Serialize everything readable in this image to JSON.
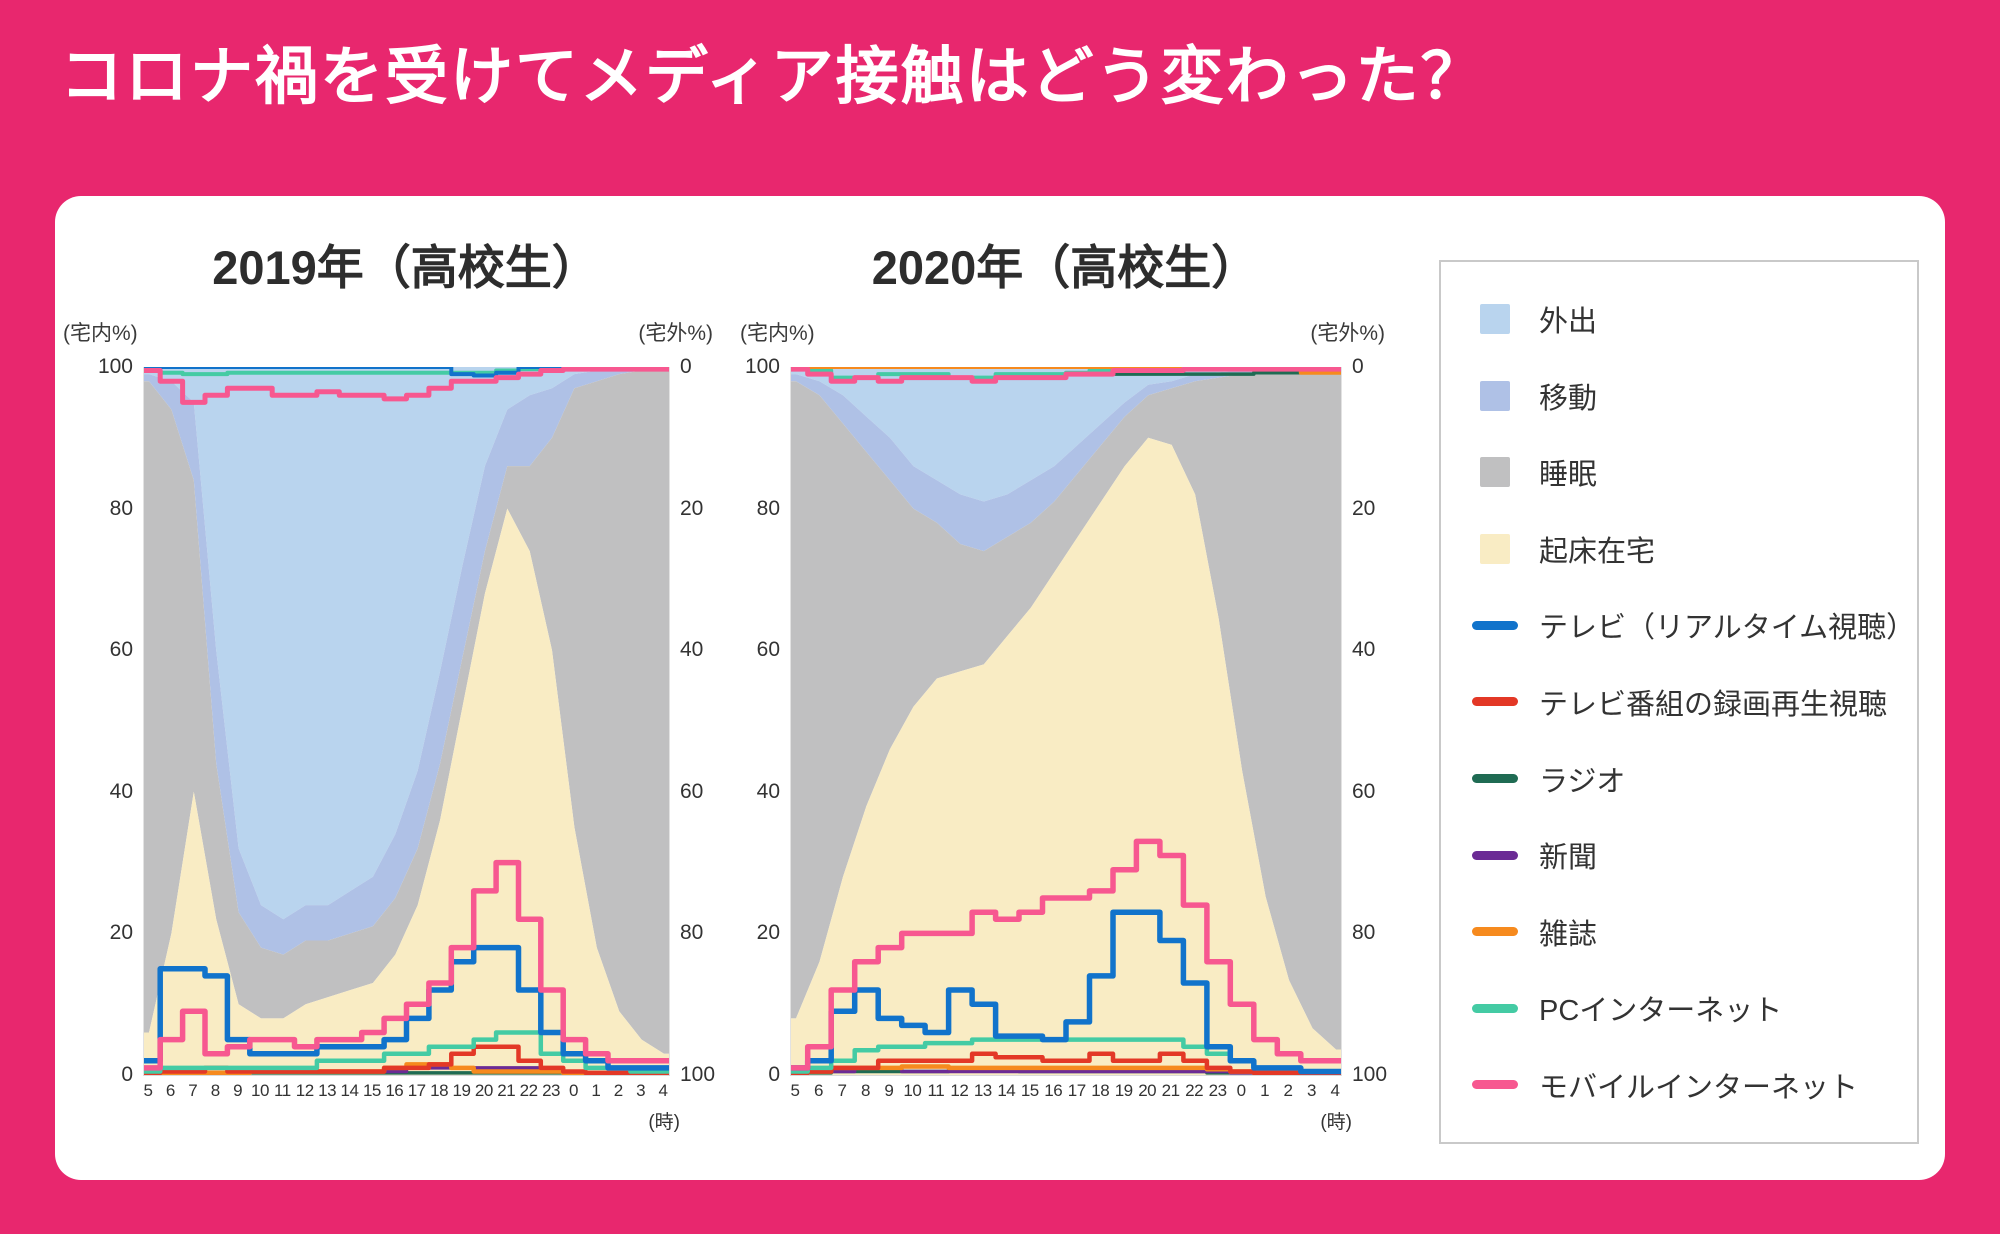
{
  "title": "コロナ禍を受けてメディア接触はどう変わった？",
  "colors": {
    "background": "#E8276E",
    "out": "#B9D4EE",
    "transit": "#AFC1E6",
    "sleep": "#C0C0C1",
    "awake": "#F9ECC4",
    "tv": "#1173CB",
    "tv_rec": "#E33826",
    "radio": "#1F6B53",
    "newspaper": "#6B2B95",
    "magazine": "#F68A1E",
    "pc": "#44CBA4",
    "mobile": "#F75890"
  },
  "legend": {
    "items": [
      {
        "label": "外出",
        "color_key": "out",
        "swatch": "area"
      },
      {
        "label": "移動",
        "color_key": "transit",
        "swatch": "area"
      },
      {
        "label": "睡眠",
        "color_key": "sleep",
        "swatch": "area"
      },
      {
        "label": "起床在宅",
        "color_key": "awake",
        "swatch": "area"
      },
      {
        "label": "テレビ（リアルタイム視聴）",
        "color_key": "tv",
        "swatch": "line"
      },
      {
        "label": "テレビ番組の録画再生視聴",
        "color_key": "tv_rec",
        "swatch": "line"
      },
      {
        "label": "ラジオ",
        "color_key": "radio",
        "swatch": "line"
      },
      {
        "label": "新聞",
        "color_key": "newspaper",
        "swatch": "line"
      },
      {
        "label": "雑誌",
        "color_key": "magazine",
        "swatch": "line"
      },
      {
        "label": "PCインターネット",
        "color_key": "pc",
        "swatch": "line"
      },
      {
        "label": "モバイルインターネット",
        "color_key": "mobile",
        "swatch": "line"
      }
    ]
  },
  "chart_data": [
    {
      "type": "area",
      "title": "2019年（高校生）",
      "left_axis_label": "(宅内%)",
      "right_axis_label": "(宅外%)",
      "x_unit": "(時)",
      "hours": [
        "5",
        "6",
        "7",
        "8",
        "9",
        "10",
        "11",
        "12",
        "13",
        "14",
        "15",
        "16",
        "17",
        "18",
        "19",
        "20",
        "21",
        "22",
        "23",
        "0",
        "1",
        "2",
        "3",
        "4"
      ],
      "left_ticks": [
        "100",
        "80",
        "60",
        "40",
        "20",
        "0"
      ],
      "right_ticks": [
        "0",
        "20",
        "40",
        "60",
        "80",
        "100"
      ],
      "ylim_left": [
        0,
        100
      ],
      "ylim_right_inverted": [
        0,
        100
      ],
      "areas": {
        "awake": [
          6,
          20,
          40,
          22,
          10,
          8,
          8,
          10,
          11,
          12,
          13,
          17,
          24,
          36,
          52,
          68,
          80,
          74,
          60,
          35,
          18,
          9,
          5,
          3
        ],
        "sleep": [
          92,
          74,
          44,
          22,
          13,
          10,
          9,
          9,
          8,
          8,
          8,
          8,
          8,
          8,
          7,
          6,
          6,
          12,
          30,
          62,
          80,
          90,
          94.5,
          96.5
        ],
        "transit": [
          1,
          4,
          11,
          16,
          9,
          6,
          5,
          5,
          5,
          6,
          7,
          9,
          11,
          13,
          13,
          12,
          8,
          10,
          7,
          2,
          1.5,
          0.5,
          0.25,
          0.25
        ],
        "out": [
          1,
          2,
          5,
          40,
          68,
          76,
          78,
          76,
          76,
          74,
          72,
          66,
          57,
          43,
          28,
          14,
          6,
          4,
          3,
          1,
          0.5,
          0.5,
          0.25,
          0.25
        ]
      },
      "lines_home": {
        "tv": [
          2,
          15,
          15,
          14,
          5,
          3,
          3,
          3,
          4,
          4,
          4,
          5,
          8,
          12,
          16,
          18,
          18,
          12,
          6,
          3,
          2,
          1,
          1,
          1
        ],
        "tv_rec": [
          0.3,
          0.5,
          0.5,
          1,
          0.5,
          0.5,
          0.5,
          0.5,
          0.5,
          0.5,
          0.5,
          1,
          1,
          1.5,
          3,
          4,
          4,
          2,
          1,
          0.5,
          0.3,
          0.3,
          0.3,
          0.3
        ],
        "radio": [
          0.2,
          0.3,
          0.3,
          0.3,
          0.3,
          0.3,
          0.3,
          0.3,
          0.3,
          0.3,
          0.3,
          0.3,
          0.3,
          0.3,
          0.3,
          0.3,
          0.3,
          0.3,
          0.3,
          0.2,
          0.2,
          0.2,
          0.2,
          0.2
        ],
        "newspaper": [
          0.3,
          0.5,
          1,
          1,
          0.5,
          0.5,
          0.5,
          0.5,
          0.5,
          0.5,
          0.5,
          0.5,
          1,
          1,
          1,
          1,
          1,
          1,
          0.5,
          0.5,
          0.3,
          0.3,
          0.3,
          0.3
        ],
        "magazine": [
          0.2,
          0.3,
          0.3,
          0.3,
          0.3,
          0.5,
          0.5,
          0.5,
          0.5,
          0.5,
          0.5,
          1,
          1.5,
          1.5,
          1,
          0.5,
          0.5,
          0.5,
          0.5,
          0.3,
          0.2,
          0.2,
          0.2,
          0.2
        ],
        "pc": [
          0.5,
          1,
          1,
          1,
          1,
          1,
          1,
          1,
          2,
          2,
          2,
          3,
          3,
          4,
          4,
          5,
          6,
          6,
          3,
          2,
          1,
          1,
          0.5,
          0.5
        ],
        "mobile": [
          1,
          5,
          9,
          3,
          4,
          5,
          5,
          4,
          5,
          5,
          6,
          8,
          10,
          13,
          18,
          26,
          30,
          22,
          12,
          5,
          3,
          2,
          2,
          2
        ]
      },
      "lines_away": {
        "mobile": [
          0.5,
          2,
          5,
          4,
          3,
          3,
          4,
          4,
          3.5,
          4,
          4,
          4.5,
          4,
          3,
          2,
          2,
          1.5,
          1,
          0.5,
          0.3,
          0.3,
          0.3,
          0.3,
          0.3
        ],
        "pc": [
          0.3,
          0.8,
          1,
          1,
          0.8,
          0.8,
          0.8,
          0.8,
          0.8,
          0.8,
          0.8,
          0.8,
          0.8,
          0.8,
          0.8,
          0.8,
          0.5,
          0.3,
          0.2,
          0.2,
          0.2,
          0.2,
          0.2,
          0.2
        ],
        "tv": [
          0,
          0,
          0,
          0,
          0,
          0,
          0,
          0,
          0,
          0,
          0,
          0,
          0,
          0,
          1,
          1.2,
          0.8,
          0,
          0,
          0,
          0,
          0,
          0,
          0
        ]
      }
    },
    {
      "type": "area",
      "title": "2020年（高校生）",
      "left_axis_label": "(宅内%)",
      "right_axis_label": "(宅外%)",
      "x_unit": "(時)",
      "hours": [
        "5",
        "6",
        "7",
        "8",
        "9",
        "10",
        "11",
        "12",
        "13",
        "14",
        "15",
        "16",
        "17",
        "18",
        "19",
        "20",
        "21",
        "22",
        "23",
        "0",
        "1",
        "2",
        "3",
        "4"
      ],
      "left_ticks": [
        "100",
        "80",
        "60",
        "40",
        "20",
        "0"
      ],
      "right_ticks": [
        "0",
        "20",
        "40",
        "60",
        "80",
        "100"
      ],
      "ylim_left": [
        0,
        100
      ],
      "ylim_right_inverted": [
        0,
        100
      ],
      "areas": {
        "awake": [
          8,
          16,
          28,
          38,
          46,
          52,
          56,
          57,
          58,
          62,
          66,
          71,
          76,
          81,
          86,
          90,
          89,
          82,
          64.5,
          43,
          25.2,
          13.4,
          6.6,
          3.6
        ],
        "sleep": [
          90,
          80,
          64,
          50,
          38,
          28,
          22,
          18,
          16,
          14,
          12,
          10,
          9,
          8,
          7,
          6,
          8,
          16,
          34,
          56,
          74,
          86,
          93,
          96
        ],
        "transit": [
          1,
          2,
          4,
          5,
          6,
          6,
          6,
          7,
          7,
          6,
          6,
          5,
          4,
          3,
          2,
          1.5,
          1,
          1,
          0.75,
          0.5,
          0.4,
          0.3,
          0.2,
          0.2
        ],
        "out": [
          1,
          2,
          4,
          7,
          10,
          14,
          16,
          18,
          19,
          18,
          16,
          14,
          11,
          8,
          5,
          2.5,
          2,
          1,
          0.75,
          0.5,
          0.4,
          0.3,
          0.2,
          0.2
        ]
      },
      "lines_home": {
        "tv": [
          1,
          2,
          9,
          12,
          8,
          7,
          6,
          12,
          10,
          5.5,
          5.5,
          5,
          7.5,
          14,
          23,
          23,
          19,
          13,
          4,
          2,
          1,
          1,
          0.5,
          0.5
        ],
        "tv_rec": [
          0.3,
          0.5,
          1,
          1,
          2,
          2,
          2,
          2,
          3,
          2.5,
          2.5,
          2,
          2,
          3,
          2,
          2,
          3,
          2,
          1,
          0.5,
          0.3,
          0.3,
          0.3,
          0.3
        ],
        "radio": [
          0.2,
          0.3,
          0.5,
          0.5,
          0.5,
          0.5,
          0.5,
          0.7,
          0.7,
          0.7,
          0.5,
          0.5,
          0.5,
          0.5,
          0.5,
          0.5,
          0.5,
          0.5,
          0.3,
          0.3,
          0.2,
          0.2,
          0.2,
          0.2
        ],
        "newspaper": [
          0.3,
          0.5,
          0.5,
          1,
          1,
          0.5,
          0.5,
          0.5,
          0.5,
          0.5,
          0.5,
          0.5,
          0.5,
          0.5,
          0.5,
          0.5,
          0.5,
          0.5,
          0.5,
          0.3,
          0.3,
          0.3,
          0.3,
          0.3
        ],
        "magazine": [
          0.3,
          0.5,
          1,
          1,
          1,
          1.2,
          1.2,
          1,
          1,
          1,
          1,
          1,
          1,
          1,
          1,
          1,
          1,
          1,
          0.8,
          0.5,
          0.3,
          0.3,
          0.3,
          0.3
        ],
        "pc": [
          0.5,
          1,
          2,
          3.5,
          4,
          4,
          4.5,
          4.5,
          5,
          5,
          5,
          5,
          5,
          5,
          5,
          5,
          5,
          4,
          3,
          2,
          1,
          1,
          0.5,
          0.5
        ],
        "mobile": [
          1,
          4,
          12,
          16,
          18,
          20,
          20,
          20,
          23,
          22,
          23,
          25,
          25,
          26,
          29,
          33,
          31,
          24,
          16,
          10,
          5,
          3,
          2,
          2
        ]
      },
      "lines_away": {
        "mobile": [
          0.3,
          1,
          2,
          1.5,
          2,
          1.5,
          1.5,
          1.5,
          2,
          1.5,
          1.5,
          1.5,
          1,
          1,
          0.5,
          0.5,
          0.5,
          0.3,
          0.3,
          0.3,
          0.3,
          0.3,
          0.3,
          0.3
        ],
        "pc": [
          0.2,
          0.5,
          1.5,
          1.5,
          1,
          1,
          1,
          1.5,
          1.5,
          1,
          1,
          1,
          0.8,
          0.5,
          0.3,
          0.3,
          0.3,
          0.2,
          0.2,
          0.2,
          0.2,
          0.2,
          0.2,
          0.2
        ],
        "radio": [
          0,
          0,
          0,
          0,
          0,
          0,
          0,
          0,
          0,
          0,
          0,
          0,
          0,
          0,
          1,
          1,
          1,
          1,
          1,
          1,
          0.8,
          0.8,
          0.8,
          0
        ],
        "magazine": [
          0,
          0,
          0,
          0,
          0,
          0,
          0,
          0,
          0,
          0,
          0,
          0,
          0,
          0,
          0,
          0,
          0,
          0,
          0,
          0,
          0,
          0,
          0.8,
          0.8
        ]
      }
    }
  ]
}
